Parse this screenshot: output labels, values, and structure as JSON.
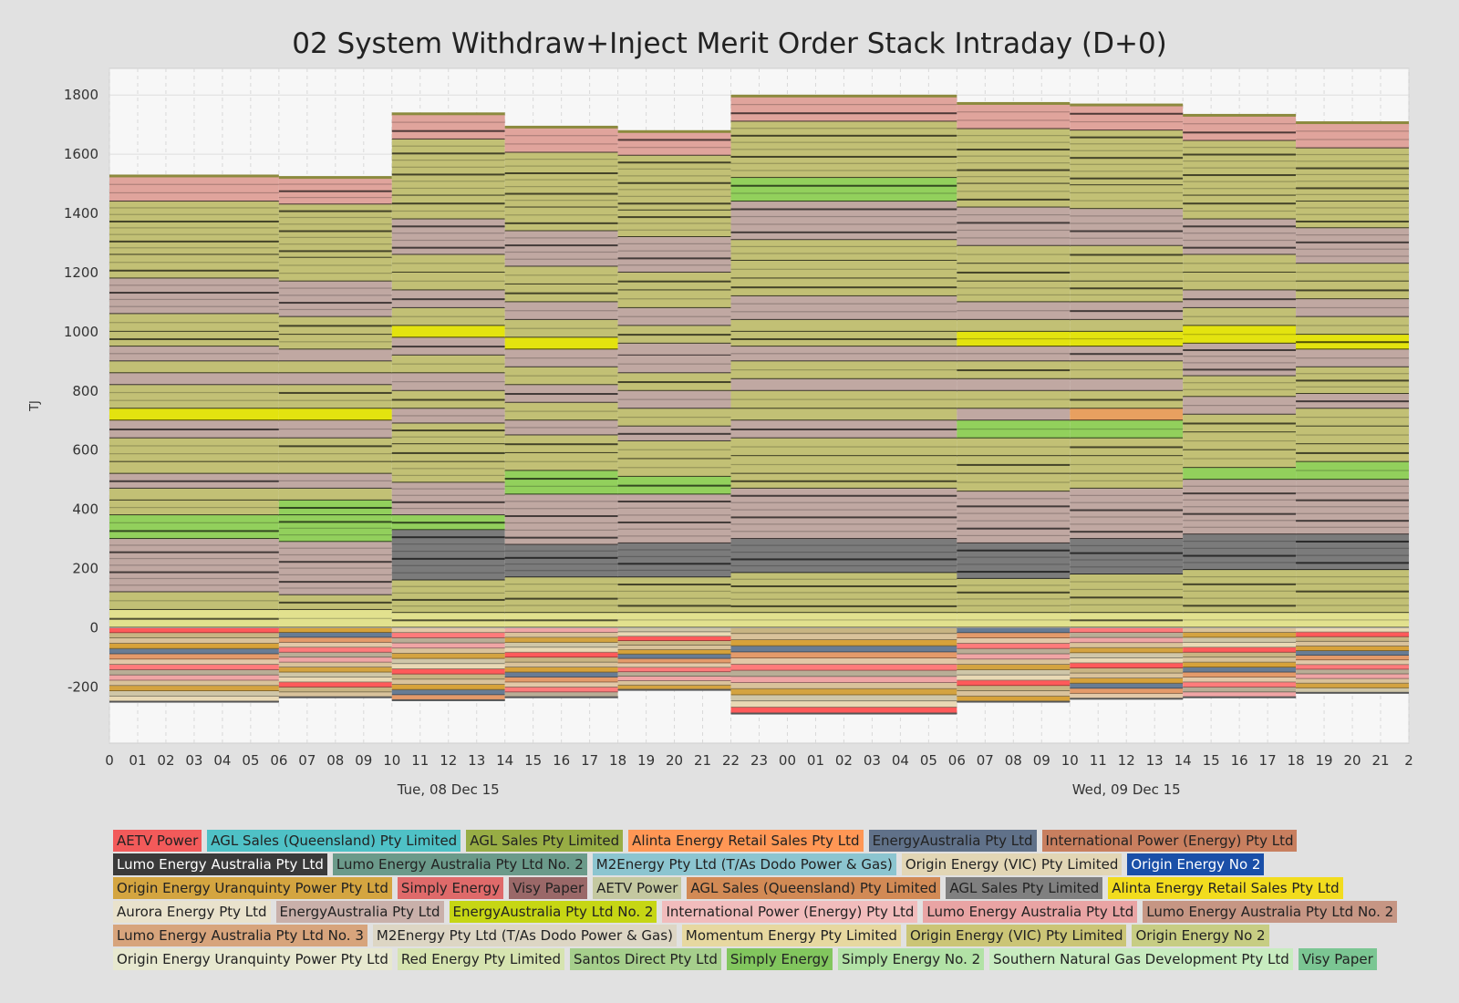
{
  "chart_data": {
    "type": "area",
    "title": "02 System Withdraw+Inject Merit Order Stack Intraday (D+0)",
    "ylabel": "TJ",
    "ylim": [
      -390,
      1890
    ],
    "yticks": [
      -200,
      0,
      200,
      400,
      600,
      800,
      1000,
      1200,
      1400,
      1600,
      1800
    ],
    "grid": true,
    "legend_position": "bottom",
    "x_tick_labels": [
      "0",
      "01",
      "02",
      "03",
      "04",
      "05",
      "06",
      "07",
      "08",
      "09",
      "10",
      "11",
      "12",
      "13",
      "14",
      "15",
      "16",
      "17",
      "18",
      "19",
      "20",
      "21",
      "22",
      "23",
      "00",
      "01",
      "02",
      "03",
      "04",
      "05",
      "06",
      "07",
      "08",
      "09",
      "10",
      "11",
      "12",
      "13",
      "14",
      "15",
      "16",
      "17",
      "18",
      "19",
      "20",
      "21",
      "2"
    ],
    "x_day_labels": [
      {
        "hour": 12,
        "label": "Tue, 08 Dec 15"
      },
      {
        "hour": 36,
        "label": "Wed, 09 Dec 15"
      }
    ],
    "x_range_hours": [
      0,
      46
    ],
    "periods": [
      {
        "start": 0,
        "end": 6,
        "top": 1525,
        "bottom": -250,
        "bands": [
          [
            1440,
            "#e0a49c"
          ],
          [
            1260,
            "#c2c075"
          ],
          [
            1180,
            "#c2c075"
          ],
          [
            1060,
            "#c0a8a2"
          ],
          [
            1000,
            "#c2c075"
          ],
          [
            950,
            "#c2c075"
          ],
          [
            900,
            "#c0a8a2"
          ],
          [
            860,
            "#c2c075"
          ],
          [
            820,
            "#c0a8a2"
          ],
          [
            740,
            "#c2c075"
          ],
          [
            700,
            "#e3e30f"
          ],
          [
            640,
            "#c0a8a2"
          ],
          [
            560,
            "#c2c075"
          ],
          [
            520,
            "#c2c075"
          ],
          [
            470,
            "#c0a8a2"
          ],
          [
            430,
            "#c2c075"
          ],
          [
            380,
            "#c2c075"
          ],
          [
            300,
            "#92d05c"
          ],
          [
            120,
            "#c0a8a2"
          ],
          [
            60,
            "#c2c075"
          ],
          [
            0,
            "#e2e18e"
          ]
        ]
      },
      {
        "start": 6,
        "end": 10,
        "top": 1520,
        "bottom": -235,
        "bands": [
          [
            1430,
            "#e0a49c"
          ],
          [
            1250,
            "#c2c075"
          ],
          [
            1170,
            "#c2c075"
          ],
          [
            1050,
            "#c0a8a2"
          ],
          [
            990,
            "#c2c075"
          ],
          [
            940,
            "#c2c075"
          ],
          [
            900,
            "#c0a8a2"
          ],
          [
            860,
            "#c2c075"
          ],
          [
            820,
            "#c0a8a2"
          ],
          [
            740,
            "#c2c075"
          ],
          [
            700,
            "#e3e30f"
          ],
          [
            640,
            "#c0a8a2"
          ],
          [
            560,
            "#c2c075"
          ],
          [
            520,
            "#c2c075"
          ],
          [
            470,
            "#c0a8a2"
          ],
          [
            430,
            "#c2c075"
          ],
          [
            380,
            "#92d05c"
          ],
          [
            290,
            "#92d05c"
          ],
          [
            110,
            "#c0a8a2"
          ],
          [
            60,
            "#c2c075"
          ],
          [
            0,
            "#e2e18e"
          ]
        ]
      },
      {
        "start": 10,
        "end": 14,
        "top": 1735,
        "bottom": -245,
        "bands": [
          [
            1650,
            "#e0a49c"
          ],
          [
            1460,
            "#c2c075"
          ],
          [
            1380,
            "#c2c075"
          ],
          [
            1260,
            "#c0a8a2"
          ],
          [
            1200,
            "#c2c075"
          ],
          [
            1140,
            "#c2c075"
          ],
          [
            1080,
            "#c0a8a2"
          ],
          [
            1020,
            "#c2c075"
          ],
          [
            980,
            "#e3e30f"
          ],
          [
            920,
            "#c0a8a2"
          ],
          [
            860,
            "#c2c075"
          ],
          [
            800,
            "#c0a8a2"
          ],
          [
            740,
            "#c2c075"
          ],
          [
            690,
            "#c0a8a2"
          ],
          [
            620,
            "#c2c075"
          ],
          [
            560,
            "#c2c075"
          ],
          [
            490,
            "#c2c075"
          ],
          [
            380,
            "#c0a8a2"
          ],
          [
            330,
            "#92d05c"
          ],
          [
            160,
            "#7b7b7b"
          ],
          [
            50,
            "#c2c075"
          ],
          [
            0,
            "#e2e18e"
          ]
        ]
      },
      {
        "start": 14,
        "end": 18,
        "top": 1690,
        "bottom": -235,
        "bands": [
          [
            1605,
            "#e0a49c"
          ],
          [
            1420,
            "#c2c075"
          ],
          [
            1340,
            "#c2c075"
          ],
          [
            1220,
            "#c0a8a2"
          ],
          [
            1160,
            "#c2c075"
          ],
          [
            1100,
            "#c2c075"
          ],
          [
            1040,
            "#c0a8a2"
          ],
          [
            980,
            "#c2c075"
          ],
          [
            940,
            "#e3e30f"
          ],
          [
            880,
            "#c0a8a2"
          ],
          [
            820,
            "#c2c075"
          ],
          [
            760,
            "#c0a8a2"
          ],
          [
            700,
            "#c2c075"
          ],
          [
            650,
            "#c0a8a2"
          ],
          [
            590,
            "#c2c075"
          ],
          [
            530,
            "#c2c075"
          ],
          [
            450,
            "#92d05c"
          ],
          [
            280,
            "#c0a8a2"
          ],
          [
            170,
            "#7b7b7b"
          ],
          [
            50,
            "#c2c075"
          ],
          [
            0,
            "#e2e18e"
          ]
        ]
      },
      {
        "start": 18,
        "end": 22,
        "top": 1675,
        "bottom": -210,
        "bands": [
          [
            1595,
            "#e0a49c"
          ],
          [
            1410,
            "#c2c075"
          ],
          [
            1320,
            "#c2c075"
          ],
          [
            1200,
            "#c0a8a2"
          ],
          [
            1140,
            "#c2c075"
          ],
          [
            1080,
            "#c2c075"
          ],
          [
            1020,
            "#c0a8a2"
          ],
          [
            960,
            "#c2c075"
          ],
          [
            920,
            "#c0a8a2"
          ],
          [
            860,
            "#c0a8a2"
          ],
          [
            800,
            "#c2c075"
          ],
          [
            740,
            "#c0a8a2"
          ],
          [
            680,
            "#c2c075"
          ],
          [
            630,
            "#c0a8a2"
          ],
          [
            570,
            "#c2c075"
          ],
          [
            510,
            "#c2c075"
          ],
          [
            450,
            "#92d05c"
          ],
          [
            285,
            "#c0a8a2"
          ],
          [
            170,
            "#7b7b7b"
          ],
          [
            50,
            "#c2c075"
          ],
          [
            0,
            "#e2e18e"
          ]
        ]
      },
      {
        "start": 22,
        "end": 30,
        "top": 1795,
        "bottom": -290,
        "bands": [
          [
            1710,
            "#e0a49c"
          ],
          [
            1520,
            "#c2c075"
          ],
          [
            1440,
            "#92d05c"
          ],
          [
            1310,
            "#c0a8a2"
          ],
          [
            1240,
            "#c2c075"
          ],
          [
            1180,
            "#c2c075"
          ],
          [
            1120,
            "#c2c075"
          ],
          [
            1040,
            "#c0a8a2"
          ],
          [
            1000,
            "#c2c075"
          ],
          [
            950,
            "#c2c075"
          ],
          [
            900,
            "#c0a8a2"
          ],
          [
            840,
            "#c2c075"
          ],
          [
            800,
            "#c0a8a2"
          ],
          [
            740,
            "#c2c075"
          ],
          [
            700,
            "#c2c075"
          ],
          [
            640,
            "#c0a8a2"
          ],
          [
            580,
            "#c2c075"
          ],
          [
            520,
            "#c2c075"
          ],
          [
            470,
            "#c2c075"
          ],
          [
            300,
            "#c0a8a2"
          ],
          [
            185,
            "#7b7b7b"
          ],
          [
            50,
            "#c2c075"
          ],
          [
            0,
            "#e2e18e"
          ]
        ]
      },
      {
        "start": 30,
        "end": 34,
        "top": 1770,
        "bottom": -250,
        "bands": [
          [
            1685,
            "#e0a49c"
          ],
          [
            1500,
            "#c2c075"
          ],
          [
            1420,
            "#c2c075"
          ],
          [
            1290,
            "#c0a8a2"
          ],
          [
            1230,
            "#c2c075"
          ],
          [
            1170,
            "#c2c075"
          ],
          [
            1100,
            "#c2c075"
          ],
          [
            1040,
            "#c0a8a2"
          ],
          [
            1000,
            "#c2c075"
          ],
          [
            950,
            "#e3e30f"
          ],
          [
            900,
            "#c0a8a2"
          ],
          [
            840,
            "#c2c075"
          ],
          [
            800,
            "#c0a8a2"
          ],
          [
            740,
            "#c2c075"
          ],
          [
            700,
            "#c0a8a2"
          ],
          [
            640,
            "#92d05c"
          ],
          [
            580,
            "#c2c075"
          ],
          [
            520,
            "#c2c075"
          ],
          [
            460,
            "#c2c075"
          ],
          [
            285,
            "#c0a8a2"
          ],
          [
            165,
            "#7b7b7b"
          ],
          [
            50,
            "#c2c075"
          ],
          [
            0,
            "#e2e18e"
          ]
        ]
      },
      {
        "start": 34,
        "end": 38,
        "top": 1765,
        "bottom": -240,
        "bands": [
          [
            1680,
            "#e0a49c"
          ],
          [
            1495,
            "#c2c075"
          ],
          [
            1415,
            "#c2c075"
          ],
          [
            1290,
            "#c0a8a2"
          ],
          [
            1230,
            "#c2c075"
          ],
          [
            1170,
            "#c2c075"
          ],
          [
            1100,
            "#c2c075"
          ],
          [
            1040,
            "#c0a8a2"
          ],
          [
            1000,
            "#c2c075"
          ],
          [
            950,
            "#e3e30f"
          ],
          [
            900,
            "#c0a8a2"
          ],
          [
            840,
            "#c2c075"
          ],
          [
            800,
            "#c0a8a2"
          ],
          [
            740,
            "#c2c075"
          ],
          [
            700,
            "#e8a060"
          ],
          [
            640,
            "#92d05c"
          ],
          [
            580,
            "#c2c075"
          ],
          [
            520,
            "#c2c075"
          ],
          [
            470,
            "#c2c075"
          ],
          [
            300,
            "#c0a8a2"
          ],
          [
            180,
            "#7b7b7b"
          ],
          [
            50,
            "#c2c075"
          ],
          [
            0,
            "#e2e18e"
          ]
        ]
      },
      {
        "start": 38,
        "end": 42,
        "top": 1730,
        "bottom": -235,
        "bands": [
          [
            1645,
            "#e0a49c"
          ],
          [
            1460,
            "#c2c075"
          ],
          [
            1380,
            "#c2c075"
          ],
          [
            1260,
            "#c0a8a2"
          ],
          [
            1200,
            "#c2c075"
          ],
          [
            1140,
            "#c2c075"
          ],
          [
            1080,
            "#c0a8a2"
          ],
          [
            1020,
            "#c2c075"
          ],
          [
            960,
            "#e3e30f"
          ],
          [
            850,
            "#c0a8a2"
          ],
          [
            780,
            "#c2c075"
          ],
          [
            720,
            "#c0a8a2"
          ],
          [
            660,
            "#c2c075"
          ],
          [
            600,
            "#c2c075"
          ],
          [
            540,
            "#c2c075"
          ],
          [
            500,
            "#92d05c"
          ],
          [
            315,
            "#c0a8a2"
          ],
          [
            195,
            "#7b7b7b"
          ],
          [
            50,
            "#c2c075"
          ],
          [
            0,
            "#e2e18e"
          ]
        ]
      },
      {
        "start": 42,
        "end": 46,
        "top": 1705,
        "bottom": -220,
        "bands": [
          [
            1620,
            "#e0a49c"
          ],
          [
            1440,
            "#c2c075"
          ],
          [
            1350,
            "#c2c075"
          ],
          [
            1230,
            "#c0a8a2"
          ],
          [
            1170,
            "#c2c075"
          ],
          [
            1110,
            "#c2c075"
          ],
          [
            1050,
            "#c0a8a2"
          ],
          [
            990,
            "#c2c075"
          ],
          [
            940,
            "#e3e30f"
          ],
          [
            880,
            "#c0a8a2"
          ],
          [
            790,
            "#c2c075"
          ],
          [
            740,
            "#c0a8a2"
          ],
          [
            680,
            "#c2c075"
          ],
          [
            620,
            "#c2c075"
          ],
          [
            560,
            "#c2c075"
          ],
          [
            500,
            "#92d05c"
          ],
          [
            315,
            "#c0a8a2"
          ],
          [
            195,
            "#7b7b7b"
          ],
          [
            50,
            "#c2c075"
          ],
          [
            0,
            "#e2e18e"
          ]
        ]
      }
    ],
    "negative_palette": [
      "#ff5a5a",
      "#c8b483",
      "#d9c29b",
      "#d7a23a",
      "#687c94",
      "#e49a6a",
      "#e2c8a8",
      "#ff7b7b",
      "#b9ad96",
      "#f0a5a5",
      "#d9c29b",
      "#d4a340",
      "#cfc6a8",
      "#e9d9b5"
    ],
    "legend_entries": [
      {
        "label": "AETV Power",
        "color": "#f25a5a"
      },
      {
        "label": "AGL Sales (Queensland) Pty Limited",
        "color": "#4fc1c6"
      },
      {
        "label": "AGL Sales Pty Limited",
        "color": "#98ad45"
      },
      {
        "label": "Alinta Energy Retail Sales Pty Ltd",
        "color": "#ff9755"
      },
      {
        "label": "EnergyAustralia Pty Ltd",
        "color": "#607189"
      },
      {
        "label": "International Power (Energy) Pty Ltd",
        "color": "#c87f5f"
      },
      {
        "label": "Lumo Energy Australia Pty Ltd",
        "color": "#3a3a3a",
        "dark": true
      },
      {
        "label": "Lumo Energy Australia Pty Ltd No. 2",
        "color": "#6b9a8a"
      },
      {
        "label": "M2Energy Pty Ltd (T/As Dodo Power & Gas)",
        "color": "#8cc5d0"
      },
      {
        "label": "Origin Energy (VIC) Pty Limited",
        "color": "#e2d6b5"
      },
      {
        "label": "Origin Energy No 2",
        "color": "#1a4fa8",
        "dark": true
      },
      {
        "label": "Origin Energy Uranquinty Power Pty Ltd",
        "color": "#d4a540"
      },
      {
        "label": "Simply Energy",
        "color": "#df6a6a"
      },
      {
        "label": "Visy Paper",
        "color": "#9a6868"
      },
      {
        "label": "AETV Power",
        "color": "#c4c8a0"
      },
      {
        "label": "AGL Sales (Queensland) Pty Limited",
        "color": "#d28a55"
      },
      {
        "label": "AGL Sales Pty Limited",
        "color": "#808080"
      },
      {
        "label": "Alinta Energy Retail Sales Pty Ltd",
        "color": "#f2dc1e"
      },
      {
        "label": "Aurora Energy Pty Ltd",
        "color": "#e9e2cc"
      },
      {
        "label": "EnergyAustralia Pty Ltd",
        "color": "#c9b0aa"
      },
      {
        "label": "EnergyAustralia Pty Ltd No. 2",
        "color": "#c6d614"
      },
      {
        "label": "International Power (Energy) Pty Ltd",
        "color": "#f1bcbc"
      },
      {
        "label": "Lumo Energy Australia Pty Ltd",
        "color": "#e9a4a4"
      },
      {
        "label": "Lumo Energy Australia Pty Ltd No. 2",
        "color": "#c69684"
      },
      {
        "label": "Lumo Energy Australia Pty Ltd No. 3",
        "color": "#d7a47c"
      },
      {
        "label": "M2Energy Pty Ltd (T/As Dodo Power & Gas)",
        "color": "#ddd6c4"
      },
      {
        "label": "Momentum Energy Pty Limited",
        "color": "#e7d8a0"
      },
      {
        "label": "Origin Energy (VIC) Pty Limited",
        "color": "#cbc576"
      },
      {
        "label": "Origin Energy No 2",
        "color": "#c7cd83"
      },
      {
        "label": "Origin Energy Uranquinty Power Pty Ltd",
        "color": "#e7e8cf"
      },
      {
        "label": "Red Energy Pty Limited",
        "color": "#d6e4b0"
      },
      {
        "label": "Santos Direct Pty Ltd",
        "color": "#a6cf8c"
      },
      {
        "label": "Simply Energy",
        "color": "#82c65e"
      },
      {
        "label": "Simply Energy No. 2",
        "color": "#b2e2a6"
      },
      {
        "label": "Southern Natural Gas Development Pty Ltd",
        "color": "#c8ecc0"
      },
      {
        "label": "Visy Paper",
        "color": "#7bc693"
      }
    ]
  }
}
